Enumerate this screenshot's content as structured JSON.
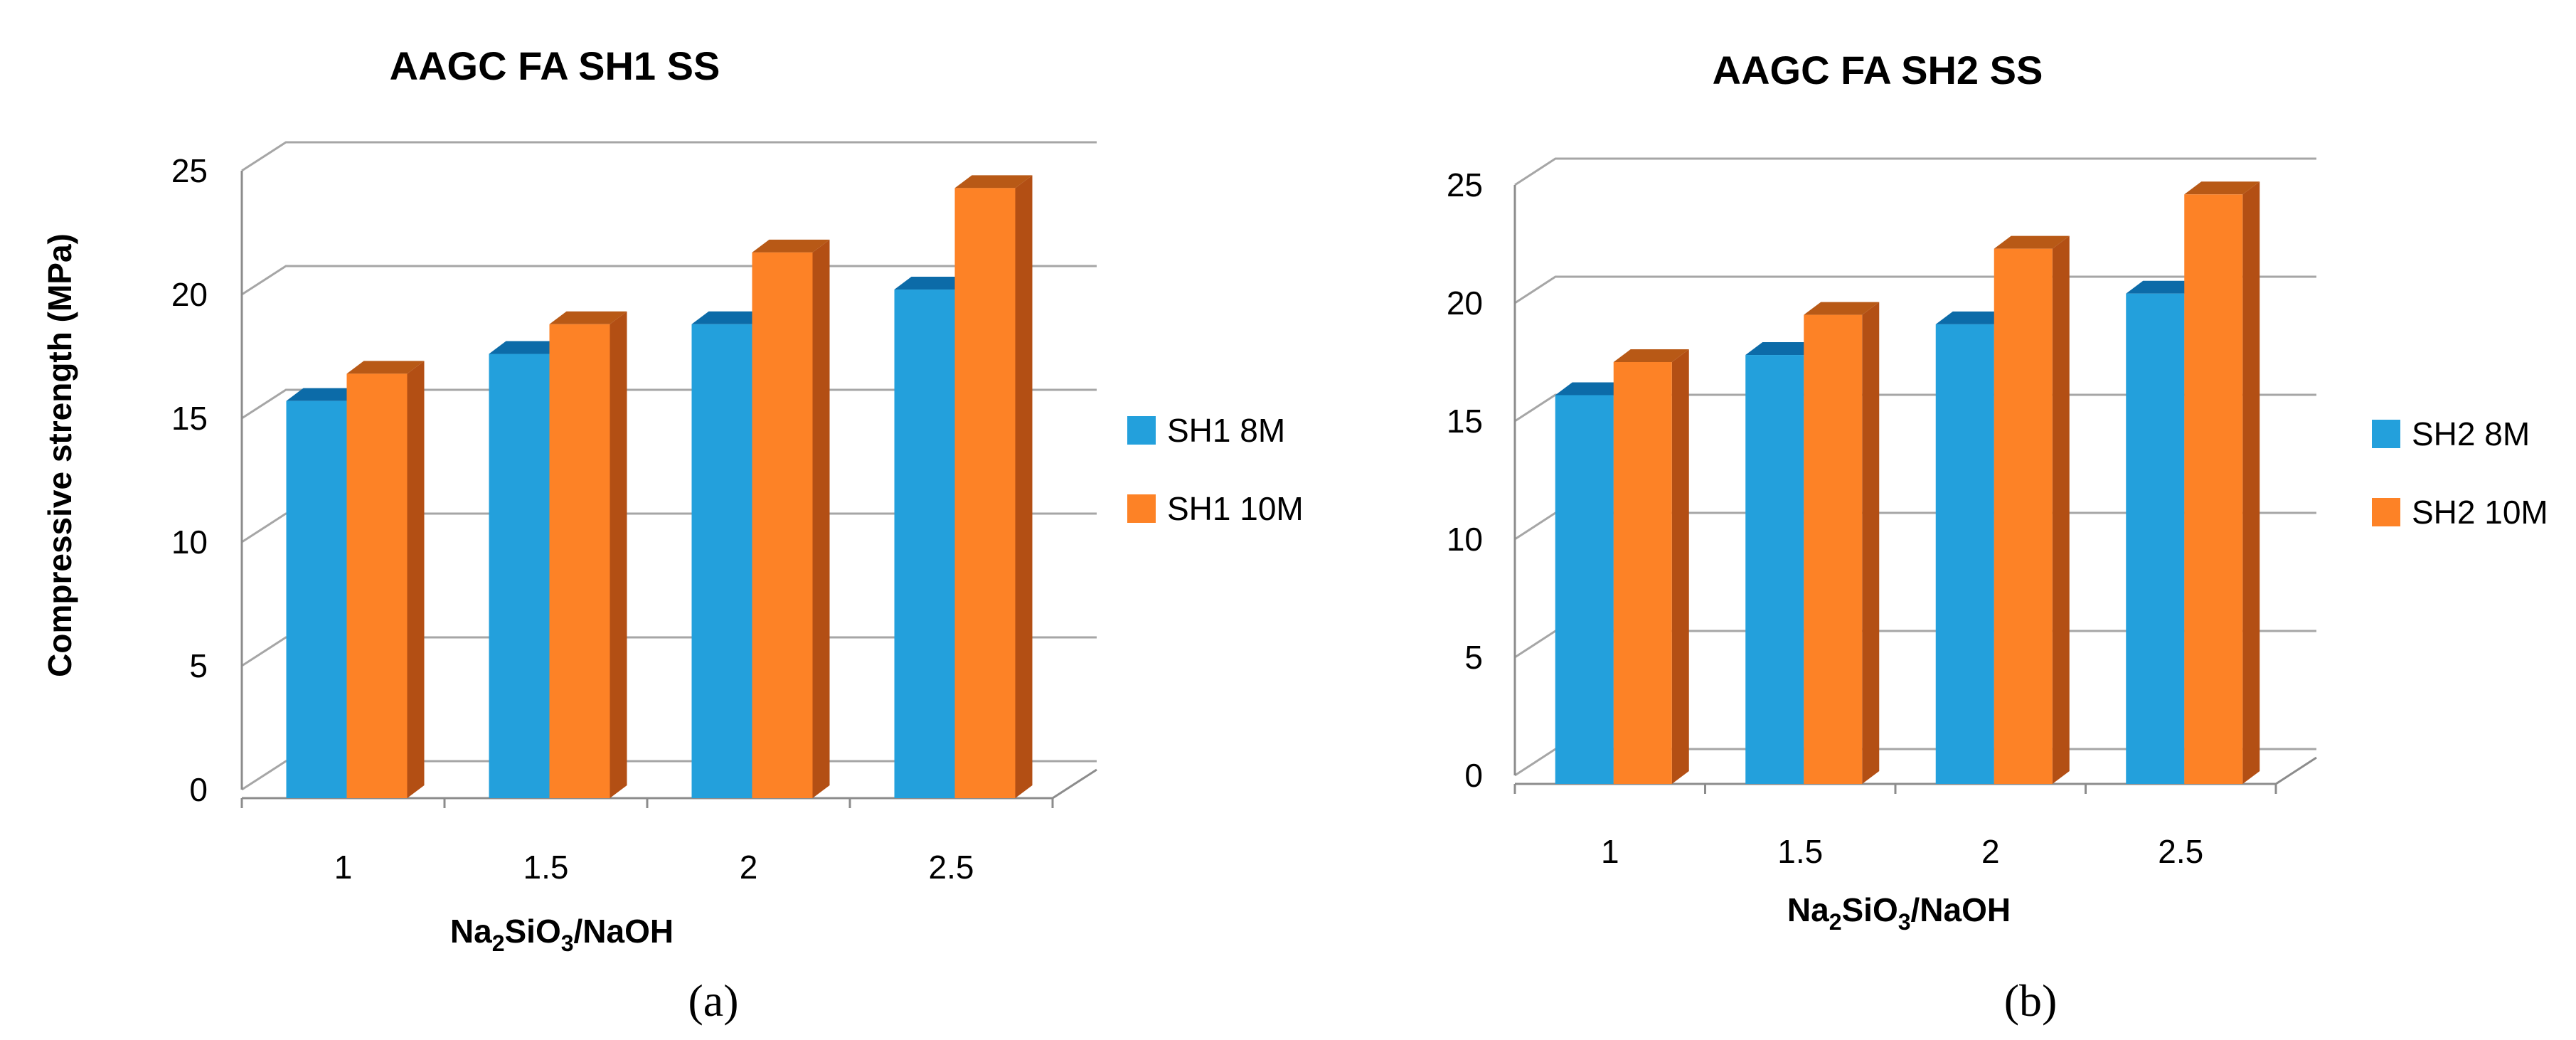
{
  "chart_data": [
    {
      "type": "bar",
      "title": "AAGC FA SH1 SS",
      "xlabel_parts": [
        "Na",
        "2",
        "SiO",
        "3",
        "/NaOH"
      ],
      "ylabel": "Compressive strength (MPa)",
      "categories": [
        "1",
        "1.5",
        "2",
        "2.5"
      ],
      "ylim": [
        0,
        25
      ],
      "yticks": [
        "0",
        "5",
        "10",
        "15",
        "20",
        "25"
      ],
      "grid": true,
      "legend_position": "right",
      "series": [
        {
          "name": "SH1 8M",
          "values": [
            15.7,
            17.6,
            18.8,
            20.2
          ]
        },
        {
          "name": "SH1 10M",
          "values": [
            16.8,
            18.8,
            21.7,
            24.3
          ]
        }
      ],
      "panel_label": "(a)"
    },
    {
      "type": "bar",
      "title": "AAGC FA SH2 SS",
      "xlabel_parts": [
        "Na",
        "2",
        "SiO",
        "3",
        "/NaOH"
      ],
      "ylabel": "",
      "categories": [
        "1",
        "1.5",
        "2",
        "2.5"
      ],
      "ylim": [
        0,
        25
      ],
      "yticks": [
        "0",
        "5",
        "10",
        "15",
        "20",
        "25"
      ],
      "grid": true,
      "legend_position": "right",
      "series": [
        {
          "name": "SH2 8M",
          "values": [
            16.1,
            17.8,
            19.1,
            20.4
          ]
        },
        {
          "name": "SH2 10M",
          "values": [
            17.5,
            19.5,
            22.3,
            24.6
          ]
        }
      ],
      "panel_label": "(b)"
    }
  ],
  "colors": {
    "series_front": [
      "#23a0dc",
      "#fd8226"
    ],
    "series_side": [
      "#1577b4",
      "#b34f14"
    ],
    "series_top": [
      "#0c6ba8",
      "#b85916"
    ]
  }
}
